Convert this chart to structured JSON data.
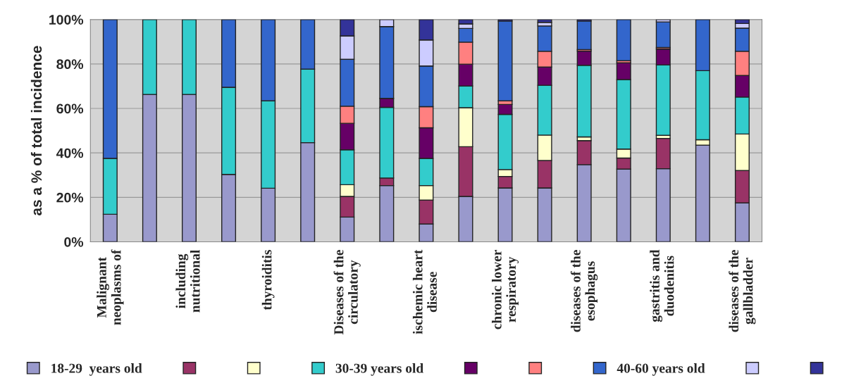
{
  "chart_data": {
    "type": "bar",
    "stacked": true,
    "ylabel": "as a % of total incidence",
    "categories": [
      "Malignant\nneoplasms of",
      null,
      "including\nnutritional",
      null,
      "thyroiditis",
      null,
      "Diseases of the\ncirculatory",
      null,
      "ischemic heart\ndisease",
      null,
      "chronic lower\nrespiratory",
      null,
      "diseases of the\nesophagus",
      null,
      "gastritis and\nduodenitis",
      null,
      "diseases of the\ngallbladder"
    ],
    "series": [
      {
        "name": "18-29  years old",
        "color": "#9999cc",
        "values": [
          12.4,
          66.3,
          66.3,
          30.3,
          24.1,
          44.6,
          11.1,
          25.3,
          8.0,
          20.4,
          24.2,
          24.2,
          34.7,
          32.7,
          32.9,
          43.5,
          17.5
        ]
      },
      {
        "color": "#993366",
        "values": [
          null,
          null,
          null,
          null,
          null,
          null,
          9.3,
          3.4,
          10.8,
          22.4,
          5.2,
          12.4,
          10.8,
          5.0,
          13.6,
          null,
          14.6
        ]
      },
      {
        "color": "#ffffcc",
        "values": [
          null,
          null,
          null,
          null,
          null,
          null,
          5.3,
          null,
          6.5,
          17.5,
          3.1,
          11.4,
          1.7,
          4.0,
          1.4,
          2.4,
          16.4
        ]
      },
      {
        "name": "30-39 years old",
        "color": "#33cccc",
        "values": [
          25.1,
          33.7,
          33.7,
          39.2,
          39.3,
          33.1,
          15.7,
          31.8,
          12.2,
          9.8,
          24.8,
          22.4,
          32.2,
          31.3,
          31.7,
          31.1,
          16.6
        ]
      },
      {
        "color": "#660066",
        "values": [
          null,
          null,
          null,
          null,
          null,
          null,
          11.9,
          4.0,
          13.8,
          9.8,
          4.5,
          8.2,
          6.4,
          7.5,
          7.1,
          null,
          9.7
        ]
      },
      {
        "color": "#ff8080",
        "values": [
          null,
          null,
          null,
          null,
          null,
          null,
          7.7,
          null,
          9.5,
          9.9,
          1.6,
          7.1,
          0.7,
          1.0,
          0.7,
          null,
          10.9
        ]
      },
      {
        "name": "40-60 years old",
        "color": "#3366cc",
        "values": [
          62.5,
          null,
          null,
          30.5,
          36.6,
          22.3,
          21.1,
          32.3,
          18.3,
          6.2,
          35.9,
          11.4,
          12.8,
          18.5,
          11.5,
          23.0,
          10.4
        ]
      },
      {
        "color": "#ccccff",
        "values": [
          null,
          null,
          null,
          null,
          null,
          null,
          10.5,
          3.2,
          11.7,
          2.0,
          null,
          1.6,
          null,
          null,
          1.1,
          null,
          2.1
        ]
      },
      {
        "color": "#333399",
        "values": [
          null,
          null,
          null,
          null,
          null,
          null,
          7.4,
          null,
          9.2,
          2.0,
          0.7,
          1.3,
          0.7,
          null,
          null,
          null,
          1.8
        ]
      }
    ],
    "ylim": [
      0,
      100
    ],
    "yticks": [
      {
        "value": 0,
        "label": "0%"
      },
      {
        "value": 20,
        "label": "20%"
      },
      {
        "value": 40,
        "label": "40%"
      },
      {
        "value": 60,
        "label": "60%"
      },
      {
        "value": 80,
        "label": "80%"
      },
      {
        "value": 100,
        "label": "100%"
      }
    ],
    "grid": "y",
    "legend": "bottom"
  }
}
